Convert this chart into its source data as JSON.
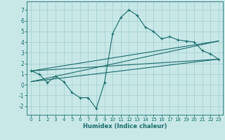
{
  "x": [
    0,
    1,
    2,
    3,
    4,
    5,
    6,
    7,
    8,
    9,
    10,
    11,
    12,
    13,
    14,
    15,
    16,
    17,
    18,
    19,
    20,
    21,
    22,
    23
  ],
  "y": [
    1.3,
    1.0,
    0.2,
    0.8,
    0.3,
    -0.7,
    -1.2,
    -1.2,
    -2.2,
    0.2,
    4.8,
    6.3,
    7.0,
    6.5,
    5.4,
    5.0,
    4.3,
    4.5,
    4.2,
    4.1,
    4.0,
    3.2,
    2.9,
    2.4
  ],
  "line_color": "#1a6b6b",
  "bg_color": "#c8e8e8",
  "grid_color": "#a0cccc",
  "xlabel": "Humidex (Indice chaleur)",
  "xlim": [
    -0.5,
    23.5
  ],
  "ylim": [
    -2.8,
    7.8
  ],
  "yticks": [
    -2,
    -1,
    0,
    1,
    2,
    3,
    4,
    5,
    6,
    7
  ],
  "xticks": [
    0,
    1,
    2,
    3,
    4,
    5,
    6,
    7,
    8,
    9,
    10,
    11,
    12,
    13,
    14,
    15,
    16,
    17,
    18,
    19,
    20,
    21,
    22,
    23
  ],
  "reg_lines": [
    {
      "x0": 0,
      "y0": 1.3,
      "x1": 23,
      "y1": 2.4
    },
    {
      "x0": 0,
      "y0": 1.3,
      "x1": 23,
      "y1": 4.1
    },
    {
      "x0": 0,
      "y0": 0.3,
      "x1": 23,
      "y1": 4.1
    },
    {
      "x0": 0,
      "y0": 0.3,
      "x1": 23,
      "y1": 2.4
    }
  ]
}
